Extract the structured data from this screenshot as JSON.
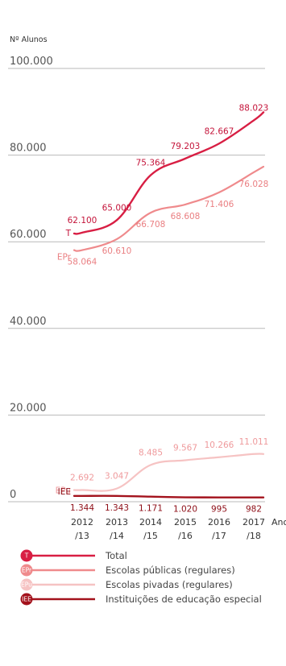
{
  "chart_data": {
    "type": "line",
    "y_title": "Nº Alunos",
    "x_label": "Ano",
    "y_ticks": [
      "100.000",
      "80.000",
      "60.000",
      "40.000",
      "20.000",
      "0"
    ],
    "y_tick_values": [
      100000,
      80000,
      60000,
      40000,
      20000,
      0
    ],
    "ylim": [
      0,
      100000
    ],
    "categories": [
      {
        "line1": "2012",
        "line2": "/13"
      },
      {
        "line1": "2013",
        "line2": "/14"
      },
      {
        "line1": "2014",
        "line2": "/15"
      },
      {
        "line1": "2015",
        "line2": "/16"
      },
      {
        "line1": "2016",
        "line2": "/17"
      },
      {
        "line1": "2017",
        "line2": "/18"
      }
    ],
    "series": [
      {
        "key": "T",
        "name": "Total",
        "short": "T",
        "color": "#d81e43",
        "values": [
          62100,
          65000,
          75364,
          79203,
          82667,
          88023
        ],
        "labels": [
          "62.100",
          "65.000",
          "75.364",
          "79.203",
          "82.667",
          "88.023"
        ],
        "label_color": "#c4143a"
      },
      {
        "key": "EPr",
        "name": "Escolas públicas (regulares)",
        "short": "EPr",
        "color": "#ef8a8c",
        "values": [
          58064,
          60610,
          66708,
          68608,
          71406,
          76028
        ],
        "labels": [
          "58.064",
          "60.610",
          "66.708",
          "68.608",
          "71.406",
          "76.028"
        ],
        "label_color": "#ea7f82"
      },
      {
        "key": "EPu",
        "name": "Escolas pivadas (regulares)",
        "short": "EPu",
        "color": "#f6c3c3",
        "values": [
          2692,
          3047,
          8485,
          9567,
          10266,
          11011
        ],
        "labels": [
          "2.692",
          "3.047",
          "8.485",
          "9.567",
          "10.266",
          "11.011"
        ],
        "label_color": "#ef9a9c"
      },
      {
        "key": "IEE",
        "name": "Instituições de educação especial",
        "short": "IEE",
        "color": "#a3121c",
        "values": [
          1344,
          1343,
          1171,
          1020,
          995,
          982
        ],
        "labels": [
          "1.344",
          "1.343",
          "1.171",
          "1.020",
          "995",
          "982"
        ],
        "label_color": "#8e0e17"
      }
    ]
  }
}
